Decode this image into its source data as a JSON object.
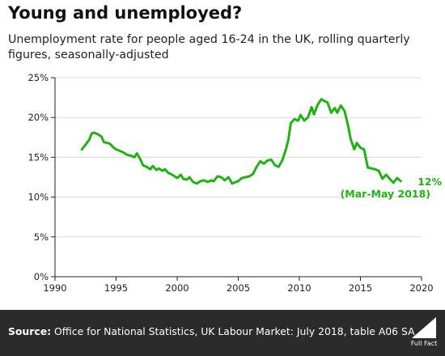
{
  "header": {
    "title": "Young and unemployed?",
    "subtitle": "Unemployment rate for people aged 16-24 in the UK, rolling quarterly figures, seasonally-adjusted"
  },
  "footer": {
    "source_label": "Source:",
    "source_text": "Office for National Statistics, UK Labour Market: July 2018, table A06 SA",
    "logo_text": "Full Fact"
  },
  "colors": {
    "line": "#22b014",
    "annotation": "#22b014",
    "axis": "#222222",
    "grid": "#d9d9d9",
    "footer_bg": "#2b2b2b"
  },
  "chart_data": {
    "type": "line",
    "title": "Young and unemployed?",
    "xlim": [
      1990,
      2020
    ],
    "ylim": [
      0,
      25
    ],
    "x_ticks": [
      1990,
      1995,
      2000,
      2005,
      2010,
      2015,
      2020
    ],
    "x_tick_labels": [
      "1990",
      "1995",
      "2000",
      "2005",
      "2010",
      "2015",
      "2020"
    ],
    "y_ticks": [
      0,
      5,
      10,
      15,
      20,
      25
    ],
    "y_tick_labels": [
      "0%",
      "5%",
      "10%",
      "15%",
      "20%",
      "25%"
    ],
    "grid": "horizontal",
    "annotation": {
      "value_label": "12%",
      "period_label": "(Mar-May 2018)"
    },
    "series": [
      {
        "x": [
          1992.2,
          1992.5,
          1992.8,
          1993.0,
          1993.2,
          1993.5,
          1993.8,
          1994.0,
          1994.3,
          1994.5,
          1994.8,
          1995.0,
          1995.3,
          1995.6,
          1995.9,
          1996.2,
          1996.5,
          1996.7,
          1997.0,
          1997.2,
          1997.5,
          1997.8,
          1998.0,
          1998.3,
          1998.5,
          1998.8,
          1999.0,
          1999.3,
          1999.5,
          1999.8,
          2000.0,
          2000.3,
          2000.5,
          2000.8,
          2001.0,
          2001.3,
          2001.6,
          2001.9,
          2002.2,
          2002.5,
          2002.8,
          2003.0,
          2003.3,
          2003.6,
          2003.9,
          2004.2,
          2004.5,
          2004.8,
          2005.0,
          2005.3,
          2005.6,
          2005.9,
          2006.2,
          2006.5,
          2006.8,
          2007.1,
          2007.4,
          2007.7,
          2008.0,
          2008.3,
          2008.6,
          2008.9,
          2009.1,
          2009.3,
          2009.6,
          2009.9,
          2010.1,
          2010.4,
          2010.7,
          2011.0,
          2011.2,
          2011.5,
          2011.8,
          2012.0,
          2012.3,
          2012.6,
          2012.9,
          2013.1,
          2013.4,
          2013.7,
          2014.0,
          2014.2,
          2014.5,
          2014.7,
          2015.0,
          2015.3,
          2015.6,
          2015.9,
          2016.2,
          2016.5,
          2016.8,
          2017.1,
          2017.4,
          2017.7,
          2018.0,
          2018.3
        ],
        "values": [
          16.0,
          16.6,
          17.2,
          18.0,
          18.1,
          17.9,
          17.6,
          16.9,
          16.8,
          16.7,
          16.2,
          16.0,
          15.8,
          15.6,
          15.3,
          15.2,
          15.0,
          15.5,
          14.7,
          14.0,
          13.8,
          13.5,
          13.9,
          13.4,
          13.6,
          13.3,
          13.5,
          13.0,
          12.9,
          12.6,
          12.4,
          12.8,
          12.3,
          12.2,
          12.5,
          11.9,
          11.7,
          12.0,
          12.1,
          11.9,
          12.1,
          12.0,
          12.6,
          12.5,
          12.1,
          12.5,
          11.7,
          11.9,
          12.0,
          12.4,
          12.5,
          12.6,
          12.9,
          13.8,
          14.5,
          14.2,
          14.6,
          14.7,
          14.0,
          13.8,
          14.6,
          16.0,
          17.2,
          19.3,
          19.8,
          19.6,
          20.3,
          19.6,
          20.0,
          21.3,
          20.4,
          21.6,
          22.3,
          22.1,
          21.9,
          20.6,
          21.2,
          20.6,
          21.5,
          20.8,
          18.9,
          17.3,
          16.0,
          16.8,
          16.2,
          16.0,
          13.7,
          13.6,
          13.5,
          13.3,
          12.3,
          12.8,
          12.3,
          11.8,
          12.4,
          12.0
        ]
      }
    ]
  }
}
